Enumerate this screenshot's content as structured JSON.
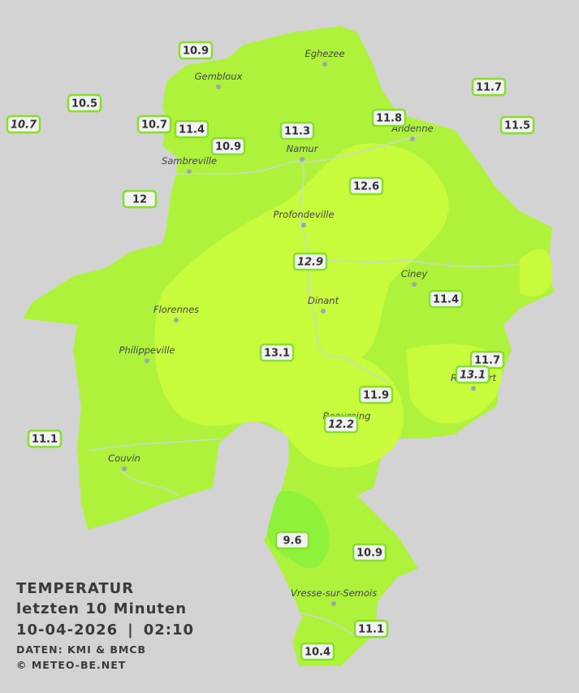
{
  "legend": {
    "title": "TEMPERATUR",
    "period": "letzten 10 Minuten",
    "date": "10-04-2026",
    "separator": "|",
    "time": "02:10",
    "source": "DATEN: KMI & BMCB",
    "copyright": "© METEO-BE.NET"
  },
  "cities": [
    "Eghezee",
    "Gembloux",
    "Andenne",
    "Namur",
    "Sambreville",
    "Profondeville",
    "Ciney",
    "Dinant",
    "Florennes",
    "Philippeville",
    "Rochefort",
    "Beauraing",
    "Couvin",
    "Vresse-sur-Semois"
  ],
  "stations": [
    {
      "value": 10.9,
      "italic": false
    },
    {
      "value": 10.5,
      "italic": false
    },
    {
      "value": 10.7,
      "italic": true
    },
    {
      "value": 10.7,
      "italic": false
    },
    {
      "value": 11.4,
      "italic": false
    },
    {
      "value": 10.9,
      "italic": false
    },
    {
      "value": 11.3,
      "italic": false
    },
    {
      "value": 11.8,
      "italic": false
    },
    {
      "value": 11.7,
      "italic": false
    },
    {
      "value": 11.5,
      "italic": false
    },
    {
      "value": 12.0,
      "italic": false
    },
    {
      "value": 12.6,
      "italic": false
    },
    {
      "value": 12.9,
      "italic": true
    },
    {
      "value": 11.4,
      "italic": false
    },
    {
      "value": 13.1,
      "italic": false
    },
    {
      "value": 11.7,
      "italic": false
    },
    {
      "value": 13.1,
      "italic": true
    },
    {
      "value": 11.9,
      "italic": false
    },
    {
      "value": 12.2,
      "italic": true
    },
    {
      "value": 11.1,
      "italic": false
    },
    {
      "value": 9.6,
      "italic": false
    },
    {
      "value": 10.9,
      "italic": false
    },
    {
      "value": 11.1,
      "italic": false
    },
    {
      "value": 10.4,
      "italic": false
    }
  ]
}
